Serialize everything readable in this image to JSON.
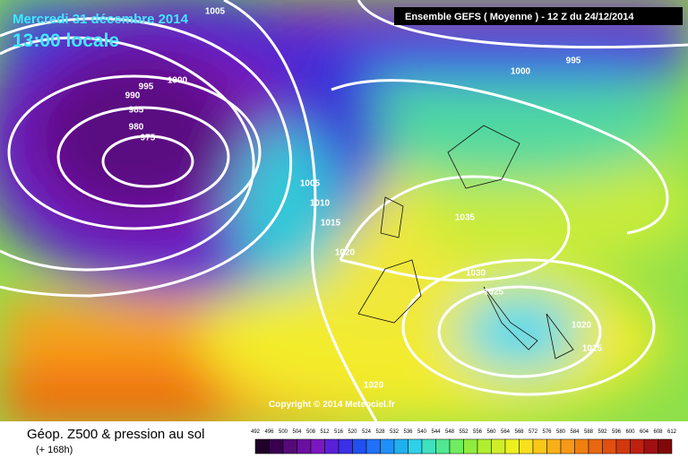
{
  "header": {
    "date": "Mercredi 31 décembre 2014",
    "time": "13:00 locale",
    "model": "Ensemble GEFS  ( Moyenne )  -  12 Z du 24/12/2014"
  },
  "map": {
    "isobar_labels": [
      1005,
      1000,
      995,
      990,
      985,
      980,
      975,
      1005,
      1010,
      1015,
      1020,
      1035,
      1030,
      1025,
      1020,
      1015,
      1020,
      1000,
      995
    ],
    "copyright": "Copyright © 2014 Meteociel.fr"
  },
  "footer": {
    "title": "Géop. Z500 & pression au sol",
    "lead": "(+ 168h)",
    "scale": [
      492,
      496,
      500,
      504,
      508,
      512,
      516,
      520,
      524,
      528,
      532,
      536,
      540,
      544,
      548,
      552,
      556,
      560,
      564,
      568,
      572,
      576,
      580,
      584,
      588,
      592,
      596,
      600,
      604,
      608,
      612
    ]
  }
}
